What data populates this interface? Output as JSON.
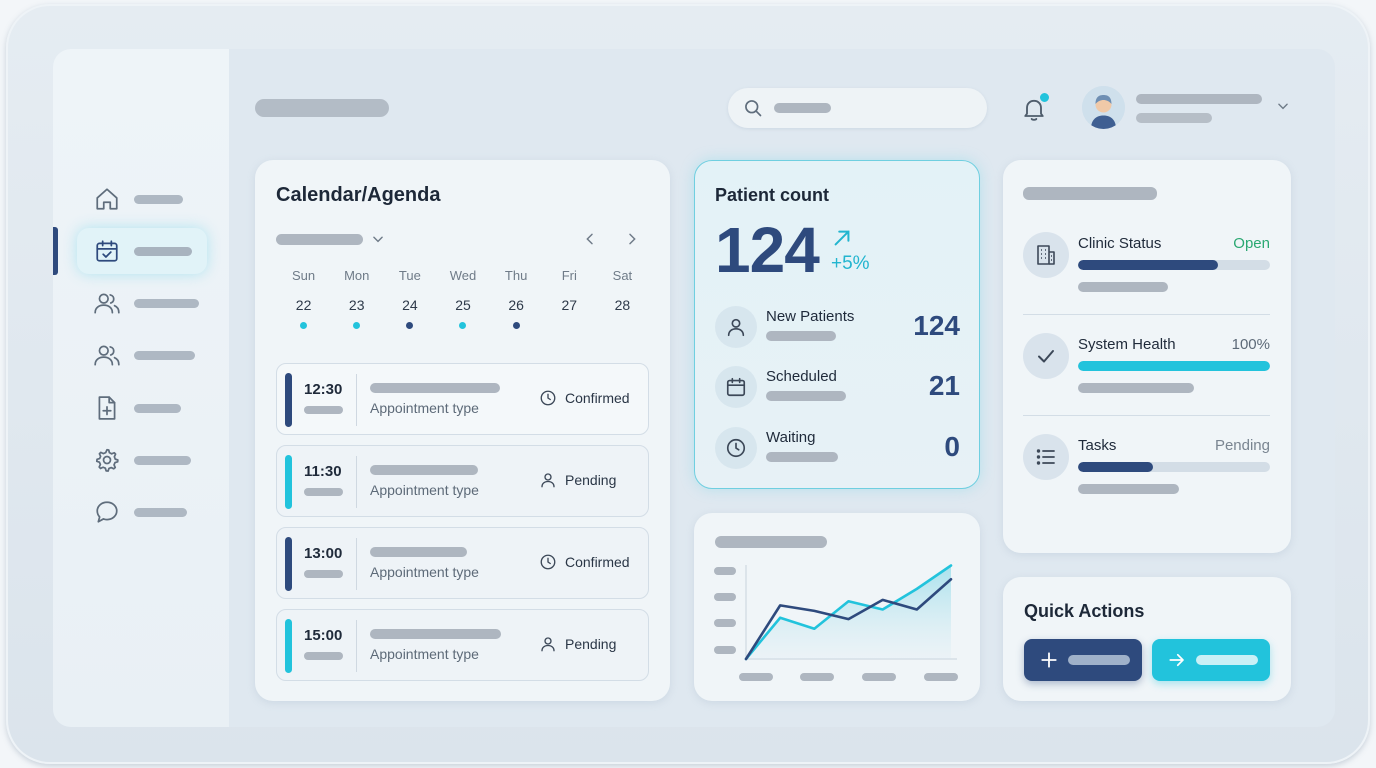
{
  "calendar": {
    "title": "Calendar/Agenda",
    "days": [
      {
        "name": "Sun",
        "num": "22",
        "dot": "#22c3dc"
      },
      {
        "name": "Mon",
        "num": "23",
        "dot": "#22c3dc"
      },
      {
        "name": "Tue",
        "num": "24",
        "dot": "#2e4a7d"
      },
      {
        "name": "Wed",
        "num": "25",
        "dot": "#22c3dc"
      },
      {
        "name": "Thu",
        "num": "26",
        "dot": "#2e4a7d"
      },
      {
        "name": "Fri",
        "num": "27",
        "dot": ""
      },
      {
        "name": "Sat",
        "num": "28",
        "dot": ""
      }
    ],
    "appointments": [
      {
        "time": "12:30",
        "type": "Appointment type",
        "status": "Confirmed",
        "status_icon": "clock-icon",
        "bar_color": "#2e4a7d"
      },
      {
        "time": "11:30",
        "type": "Appointment type",
        "status": "Pending",
        "status_icon": "user-icon",
        "bar_color": "#22c3dc"
      },
      {
        "time": "13:00",
        "type": "Appointment type",
        "status": "Confirmed",
        "status_icon": "clock-icon",
        "bar_color": "#2e4a7d"
      },
      {
        "time": "15:00",
        "type": "Appointment type",
        "status": "Pending",
        "status_icon": "user-icon",
        "bar_color": "#22c3dc"
      }
    ]
  },
  "patient_count": {
    "title": "Patient count",
    "total": "124",
    "change": "+5%",
    "rows": [
      {
        "label": "New Patients",
        "value": "124",
        "icon": "user-icon"
      },
      {
        "label": "Scheduled",
        "value": "21",
        "icon": "calendar-icon"
      },
      {
        "label": "Waiting",
        "value": "0",
        "icon": "clock-icon"
      }
    ]
  },
  "status": {
    "rows": [
      {
        "label": "Clinic Status",
        "state": "Open",
        "state_color": "#2aa872",
        "progress": 0.73,
        "bar_color": "#2e4a7d",
        "icon": "building-icon"
      },
      {
        "label": "System Health",
        "state": "100%",
        "state_color": "#5d6a78",
        "progress": 1.0,
        "bar_color": "#22c3dc",
        "icon": "check-icon"
      },
      {
        "label": "Tasks",
        "state": "Pending",
        "state_color": "#7a8591",
        "progress": 0.39,
        "bar_color": "#2e4a7d",
        "icon": "list-icon"
      }
    ]
  },
  "quick_actions": {
    "title": "Quick Actions",
    "colors": {
      "primary": "#2e4a7d",
      "secondary": "#22c3dc"
    }
  },
  "chart_data": {
    "type": "line",
    "title": "",
    "xlabel": "",
    "ylabel": "",
    "categories": [
      "",
      "",
      "",
      "",
      "",
      "",
      ""
    ],
    "series": [
      {
        "values": [
          0,
          3,
          2.2,
          4.2,
          3.6,
          5.1,
          6.8
        ],
        "color": "#22c3dc"
      },
      {
        "values": [
          0,
          3.9,
          3.5,
          2.9,
          4.3,
          3.6,
          5.8
        ],
        "color": "#2e4a7d"
      }
    ],
    "ylim": [
      0,
      8
    ],
    "grid": false
  }
}
